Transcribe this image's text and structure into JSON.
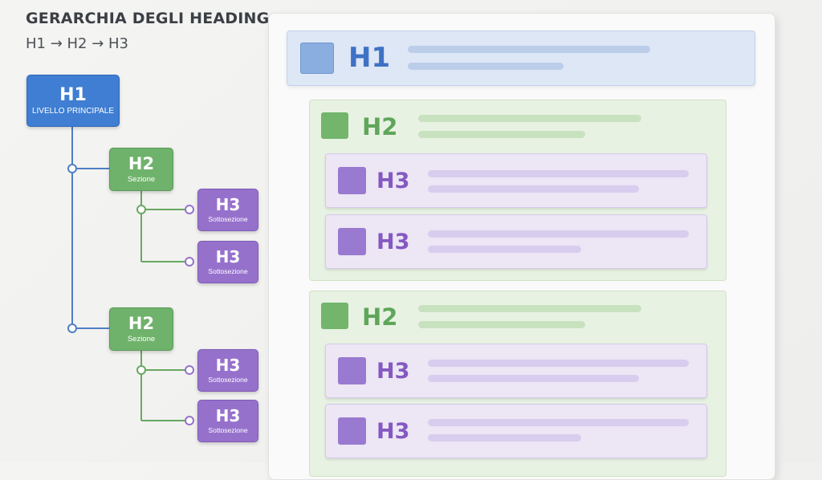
{
  "header": {
    "title": "GERARCHIA DEGLI HEADING",
    "subtitle": "H1 → H2 → H3"
  },
  "tree": {
    "h1": {
      "title": "H1",
      "subtitle": "LIVELLO PRINCIPALE"
    },
    "sections": [
      {
        "title": "H2",
        "subtitle": "Sezione",
        "children": [
          {
            "title": "H3",
            "subtitle": "Sottosezione"
          },
          {
            "title": "H3",
            "subtitle": "Sottosezione"
          }
        ]
      },
      {
        "title": "H2",
        "subtitle": "Sezione",
        "children": [
          {
            "title": "H3",
            "subtitle": "Sottosezione"
          },
          {
            "title": "H3",
            "subtitle": "Sottosezione"
          }
        ]
      }
    ]
  },
  "page_preview": {
    "h1_label": "H1",
    "sections": [
      {
        "label": "H2",
        "subsections": [
          {
            "label": "H3"
          },
          {
            "label": "H3"
          }
        ]
      },
      {
        "label": "H2",
        "subsections": [
          {
            "label": "H3"
          },
          {
            "label": "H3"
          }
        ]
      }
    ]
  },
  "colors": {
    "h1": "#3f7ed2",
    "h2": "#6fb26b",
    "h3": "#9671cc",
    "connector": "#4f7fc4",
    "connector_green": "#67a862",
    "background": "#f2f2f0"
  }
}
